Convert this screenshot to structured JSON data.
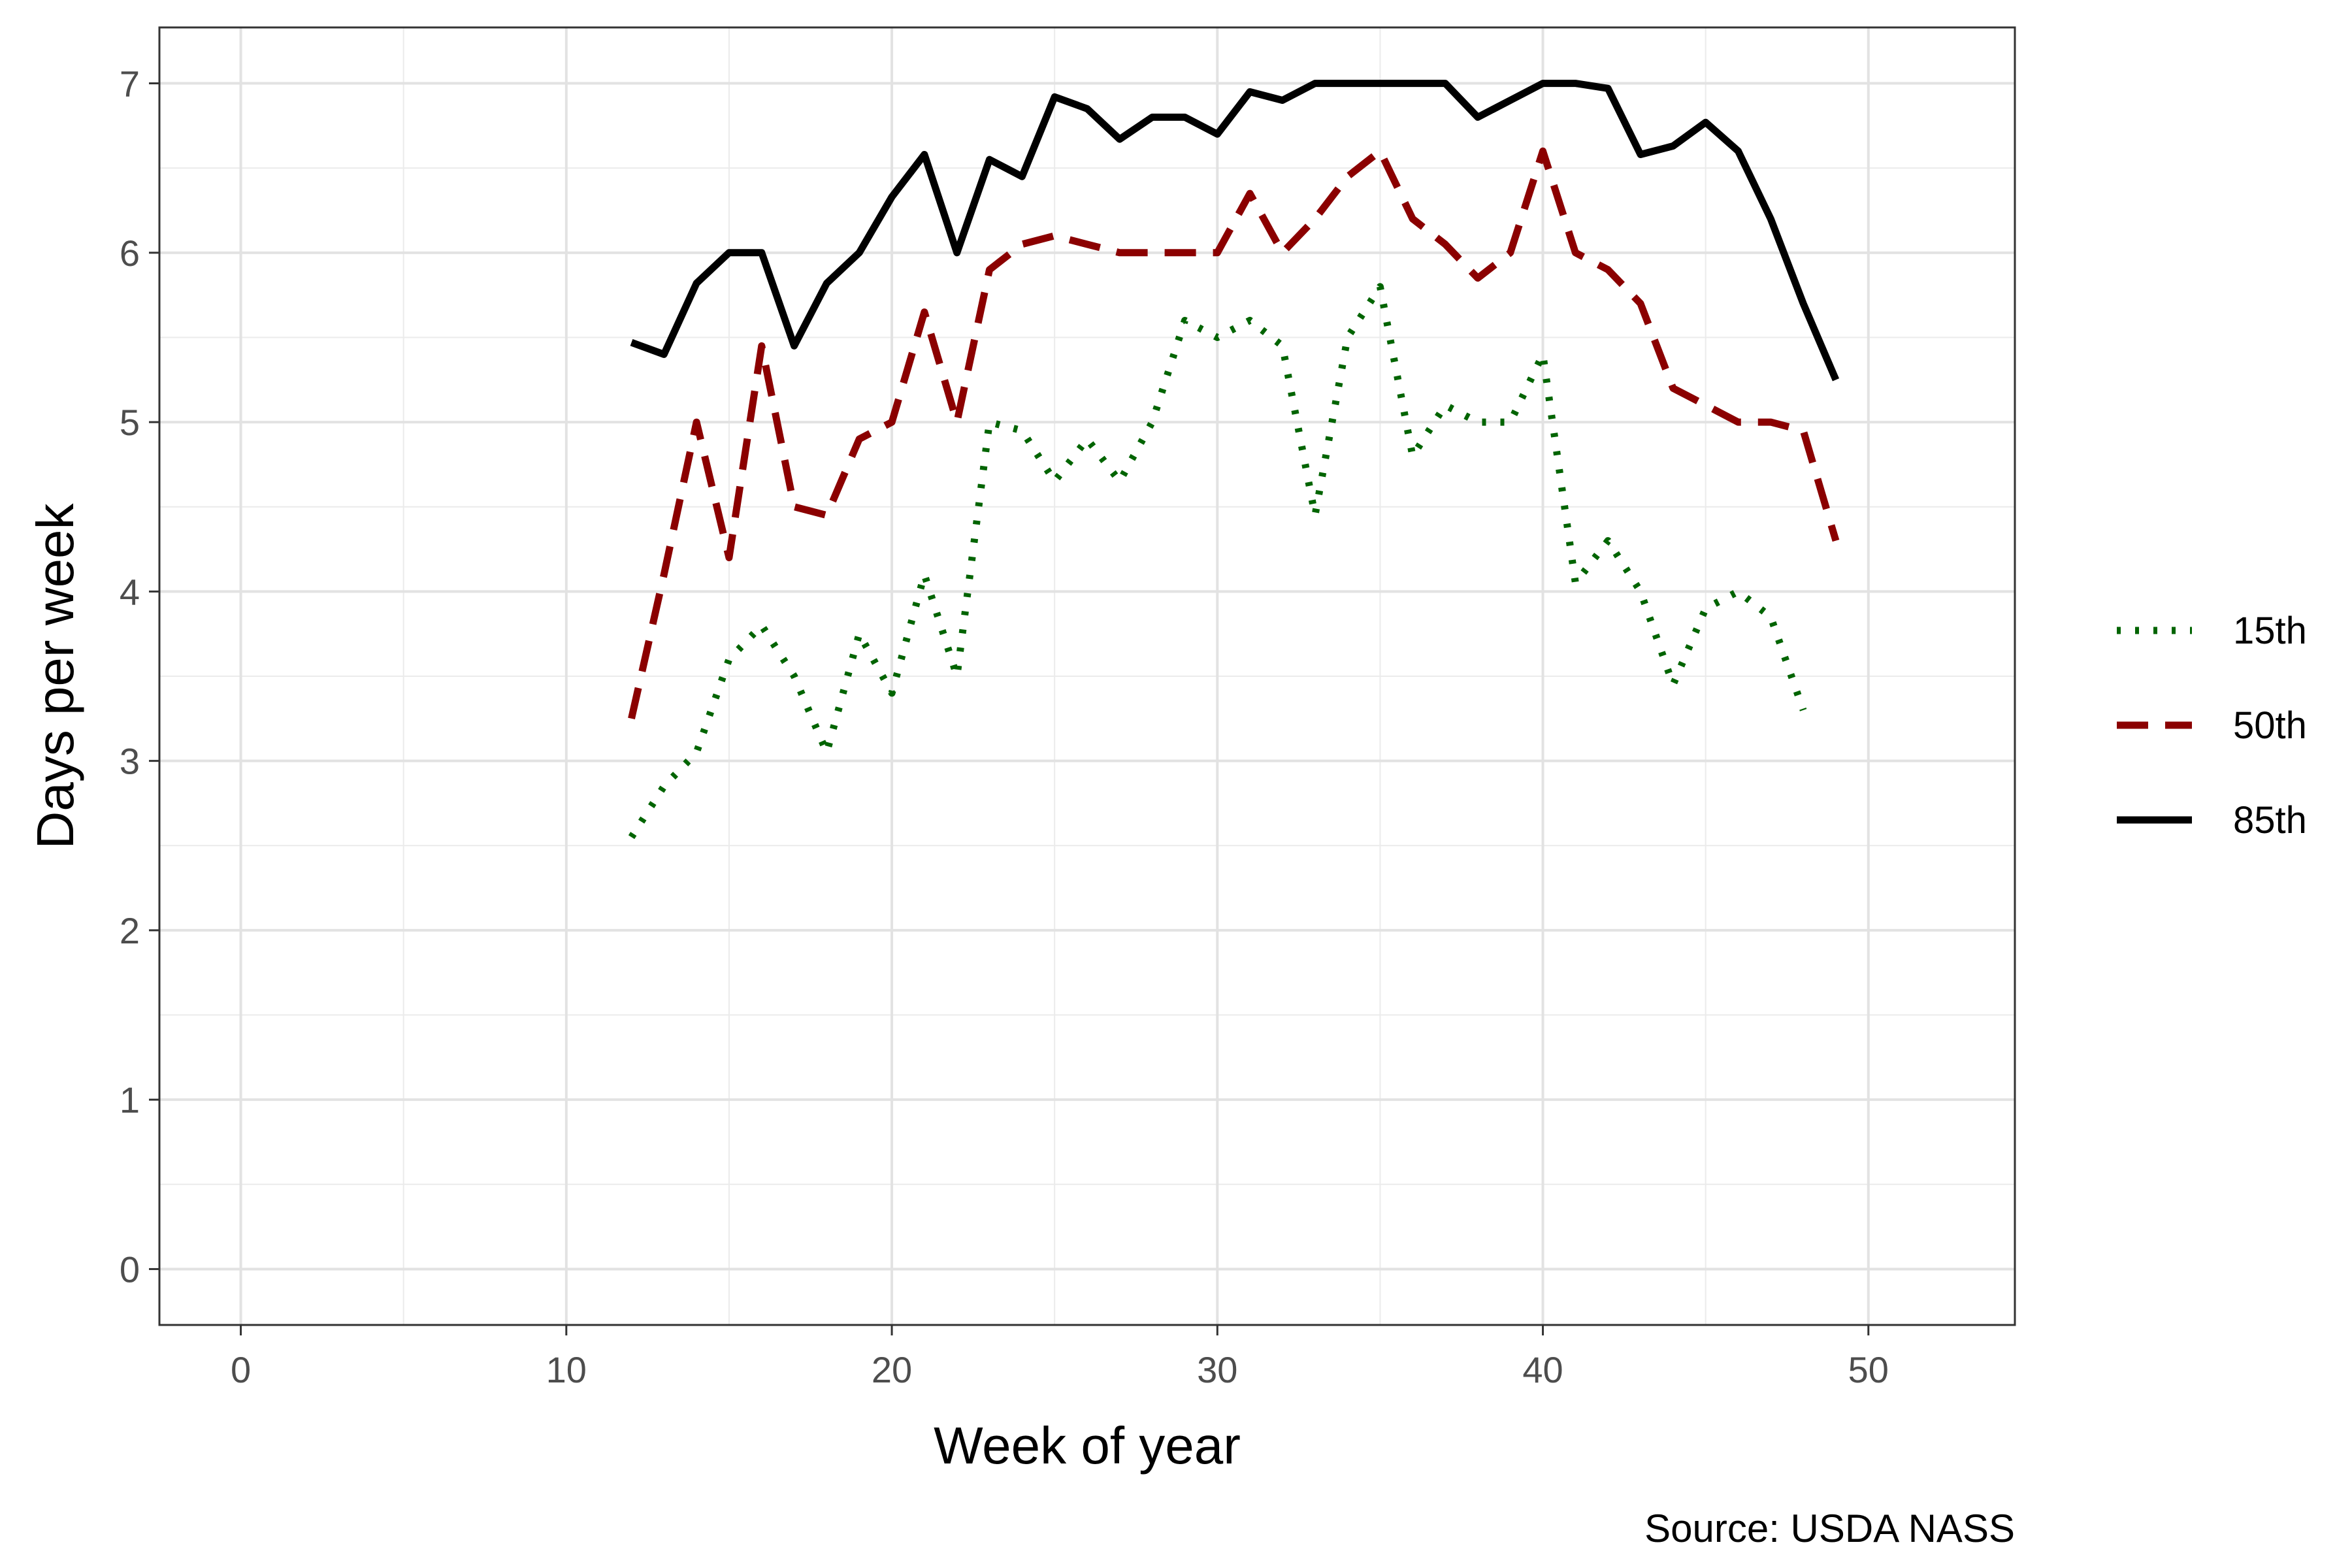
{
  "chart_data": {
    "type": "line",
    "title": "",
    "xlabel": "Week of year",
    "ylabel": "Days per week",
    "caption": "Source: USDA NASS",
    "xlim": [
      -2.5,
      54.5
    ],
    "ylim": [
      -0.33,
      7.33
    ],
    "xticks": [
      0,
      10,
      20,
      30,
      40,
      50
    ],
    "yticks": [
      0,
      1,
      2,
      3,
      4,
      5,
      6,
      7
    ],
    "xtick_labels": [
      "0",
      "10",
      "20",
      "30",
      "40",
      "50"
    ],
    "ytick_labels": [
      "0",
      "1",
      "2",
      "3",
      "4",
      "5",
      "6",
      "7"
    ],
    "grid": true,
    "legend_position": "right",
    "series": [
      {
        "name": "15th",
        "line_style": "dotted",
        "color": "#006400",
        "x": [
          12,
          13,
          14,
          15,
          16,
          17,
          18,
          19,
          20,
          21,
          22,
          23,
          24,
          25,
          26,
          27,
          28,
          29,
          30,
          31,
          32,
          33,
          34,
          35,
          36,
          37,
          38,
          39,
          40,
          41,
          42,
          43,
          44,
          45,
          46,
          47,
          48
        ],
        "y": [
          2.55,
          2.85,
          3.05,
          3.6,
          3.8,
          3.5,
          3.05,
          3.75,
          3.4,
          4.1,
          3.5,
          5.0,
          4.95,
          4.65,
          4.9,
          4.65,
          5.0,
          5.6,
          5.5,
          5.6,
          5.45,
          4.45,
          5.5,
          5.8,
          4.8,
          5.1,
          5.0,
          5.0,
          5.4,
          4.05,
          4.3,
          4.0,
          3.45,
          3.9,
          4.0,
          3.85,
          3.3
        ]
      },
      {
        "name": "50th",
        "line_style": "dashed",
        "color": "#8b0000",
        "x": [
          12,
          13,
          14,
          15,
          16,
          17,
          18,
          19,
          20,
          21,
          22,
          23,
          24,
          25,
          26,
          27,
          28,
          29,
          30,
          31,
          32,
          33,
          34,
          35,
          36,
          37,
          38,
          39,
          40,
          41,
          42,
          43,
          44,
          45,
          46,
          47,
          48,
          49
        ],
        "y": [
          3.25,
          4.1,
          5.0,
          4.2,
          5.45,
          4.5,
          4.45,
          4.9,
          5.0,
          5.65,
          5.0,
          5.9,
          6.05,
          6.1,
          6.05,
          6.0,
          6.0,
          6.0,
          6.0,
          6.35,
          6.0,
          6.2,
          6.45,
          6.6,
          6.2,
          6.05,
          5.85,
          6.0,
          6.6,
          6.0,
          5.9,
          5.7,
          5.2,
          5.1,
          5.0,
          5.0,
          4.95,
          4.3
        ]
      },
      {
        "name": "85th",
        "line_style": "solid",
        "color": "#000000",
        "x": [
          12,
          13,
          14,
          15,
          16,
          17,
          18,
          19,
          20,
          21,
          22,
          23,
          24,
          25,
          26,
          27,
          28,
          29,
          30,
          31,
          32,
          33,
          34,
          35,
          36,
          37,
          38,
          39,
          40,
          41,
          42,
          43,
          44,
          45,
          46,
          47,
          48,
          49
        ],
        "y": [
          5.47,
          5.4,
          5.82,
          6.0,
          6.0,
          5.45,
          5.82,
          6.0,
          6.33,
          6.58,
          6.0,
          6.55,
          6.45,
          6.92,
          6.85,
          6.67,
          6.8,
          6.8,
          6.7,
          6.95,
          6.9,
          7.0,
          7.0,
          7.0,
          7.0,
          7.0,
          6.8,
          6.9,
          7.0,
          7.0,
          6.97,
          6.58,
          6.63,
          6.77,
          6.6,
          6.2,
          5.7,
          5.25
        ]
      }
    ]
  }
}
